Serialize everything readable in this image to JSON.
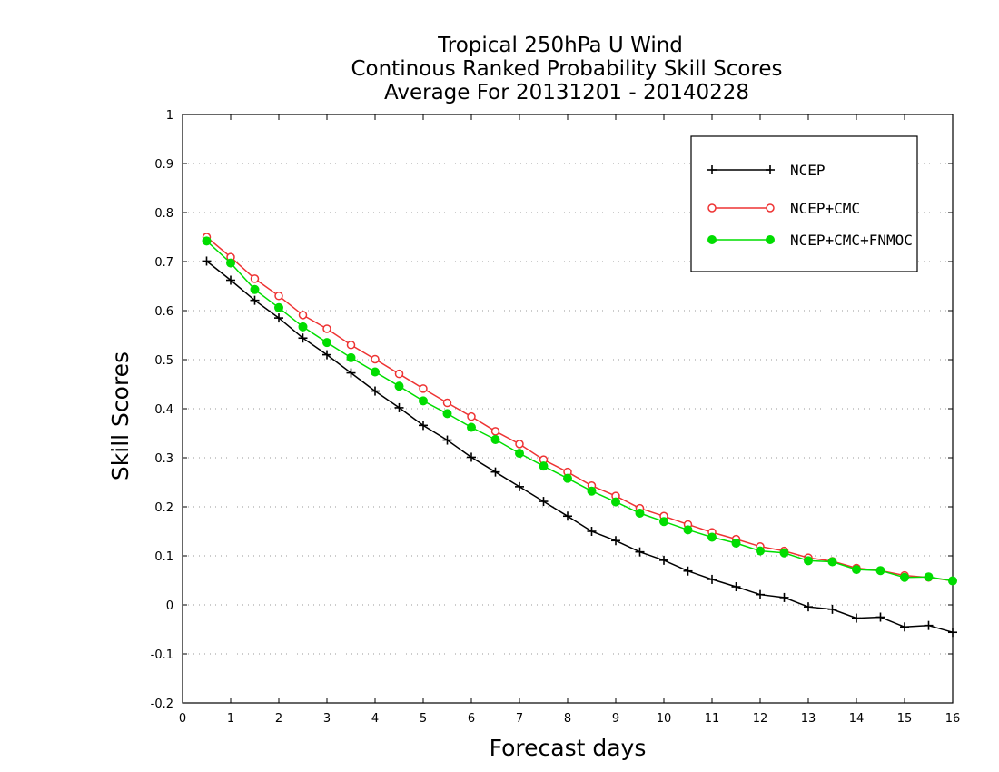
{
  "chart_data": {
    "type": "line",
    "title_lines": [
      "Tropical 250hPa U Wind",
      "Continous Ranked Probability Skill Scores",
      "Average For 20131201 - 20140228"
    ],
    "xlabel": "Forecast days",
    "ylabel": "Skill Scores",
    "xlim": [
      0,
      16
    ],
    "ylim": [
      -0.2,
      1
    ],
    "x_ticks": [
      "0",
      "1",
      "2",
      "3",
      "4",
      "5",
      "6",
      "7",
      "8",
      "9",
      "10",
      "11",
      "12",
      "13",
      "14",
      "15",
      "16"
    ],
    "y_ticks": [
      "-0.2",
      "-0.1",
      "0",
      "0.1",
      "0.2",
      "0.3",
      "0.4",
      "0.5",
      "0.6",
      "0.7",
      "0.8",
      "0.9",
      "1"
    ],
    "grid": "horizontal dotted",
    "legend_position": "top-right",
    "x": [
      0.5,
      1,
      1.5,
      2,
      2.5,
      3,
      3.5,
      4,
      4.5,
      5,
      5.5,
      6,
      6.5,
      7,
      7.5,
      8,
      8.5,
      9,
      9.5,
      10,
      10.5,
      11,
      11.5,
      12,
      12.5,
      13,
      13.5,
      14,
      14.5,
      15,
      15.5,
      16
    ],
    "series": [
      {
        "name": "NCEP",
        "color": "#000000",
        "marker": "plus",
        "values": [
          0.701,
          0.662,
          0.621,
          0.585,
          0.544,
          0.51,
          0.473,
          0.436,
          0.402,
          0.366,
          0.336,
          0.301,
          0.271,
          0.241,
          0.211,
          0.181,
          0.15,
          0.131,
          0.108,
          0.091,
          0.069,
          0.052,
          0.037,
          0.021,
          0.015,
          -0.004,
          -0.009,
          -0.027,
          -0.025,
          -0.045,
          -0.042,
          -0.056
        ]
      },
      {
        "name": "NCEP+CMC",
        "color": "#ee3333",
        "marker": "open-circle",
        "values": [
          0.75,
          0.709,
          0.665,
          0.63,
          0.591,
          0.563,
          0.53,
          0.501,
          0.471,
          0.441,
          0.412,
          0.384,
          0.354,
          0.328,
          0.296,
          0.271,
          0.243,
          0.222,
          0.197,
          0.181,
          0.164,
          0.148,
          0.134,
          0.119,
          0.11,
          0.096,
          0.089,
          0.075,
          0.07,
          0.06,
          0.056,
          0.049
        ]
      },
      {
        "name": "NCEP+CMC+FNMOC",
        "color": "#00dd00",
        "marker": "filled-circle",
        "values": [
          0.742,
          0.697,
          0.643,
          0.606,
          0.567,
          0.535,
          0.504,
          0.475,
          0.446,
          0.416,
          0.39,
          0.362,
          0.337,
          0.309,
          0.283,
          0.258,
          0.232,
          0.21,
          0.187,
          0.17,
          0.153,
          0.138,
          0.126,
          0.11,
          0.106,
          0.09,
          0.088,
          0.072,
          0.07,
          0.056,
          0.057,
          0.049
        ]
      }
    ]
  }
}
